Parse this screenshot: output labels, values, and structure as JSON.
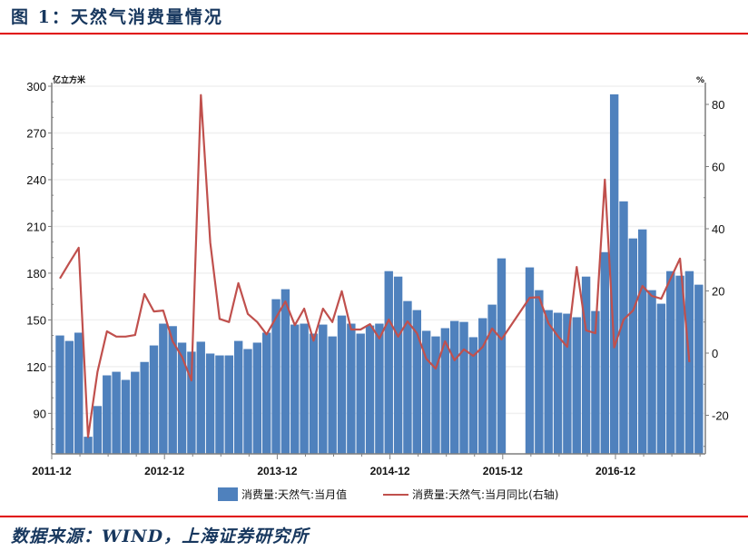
{
  "header": {
    "title": "图 1：天然气消费量情况"
  },
  "footer": {
    "source": "数据来源：WIND，上海证券研究所"
  },
  "colors": {
    "bar": "#4f81bd",
    "line": "#c0504d",
    "title": "#17375e",
    "rule": "#e00000"
  },
  "legend": {
    "bar_label": "消费量:天然气:当月值",
    "line_label": "消费量:天然气:当月同比(右轴)"
  },
  "chart_data": {
    "type": "bar+line",
    "title": "天然气消费量情况",
    "xlabel": "",
    "ylabel": "亿立方米",
    "y2label": "%",
    "ylim": [
      64,
      300
    ],
    "y2lim": [
      -32,
      86
    ],
    "yticks": [
      90,
      120,
      150,
      180,
      210,
      240,
      270,
      300
    ],
    "y2ticks": [
      -20,
      0,
      20,
      40,
      60,
      80
    ],
    "xtick_labels": [
      "2011-12",
      "2012-12",
      "2013-12",
      "2014-12",
      "2015-12",
      "2016-12"
    ],
    "grid": true,
    "legend_position": "bottom",
    "categories": [
      "2012-01",
      "2012-02",
      "2012-03",
      "2012-04",
      "2012-05",
      "2012-06",
      "2012-07",
      "2012-08",
      "2012-09",
      "2012-10",
      "2012-11",
      "2012-12",
      "2013-01",
      "2013-02",
      "2013-03",
      "2013-04",
      "2013-05",
      "2013-06",
      "2013-07",
      "2013-08",
      "2013-09",
      "2013-10",
      "2013-11",
      "2013-12",
      "2014-01",
      "2014-02",
      "2014-03",
      "2014-04",
      "2014-05",
      "2014-06",
      "2014-07",
      "2014-08",
      "2014-09",
      "2014-10",
      "2014-11",
      "2014-12",
      "2015-01",
      "2015-02",
      "2015-03",
      "2015-04",
      "2015-05",
      "2015-06",
      "2015-07",
      "2015-08",
      "2015-09",
      "2015-10",
      "2015-11",
      "2015-12",
      "2016-01",
      "2016-02",
      "2016-03",
      "2016-04",
      "2016-05",
      "2016-06",
      "2016-07",
      "2016-08",
      "2016-09",
      "2016-10",
      "2016-11",
      "2016-12",
      "2017-01",
      "2017-02",
      "2017-03",
      "2017-04",
      "2017-05",
      "2017-06",
      "2017-07",
      "2017-08",
      "2017-09",
      "2017-10"
    ],
    "series": [
      {
        "name": "消费量:天然气:当月值",
        "type": "bar",
        "axis": "left",
        "values": [
          140,
          136.5,
          141.8,
          75,
          94.7,
          114.4,
          116.7,
          111.5,
          116.7,
          123,
          133.6,
          147.6,
          146,
          135.4,
          129.6,
          136,
          128.4,
          127.2,
          127.2,
          136.5,
          131.3,
          135.4,
          141.8,
          163.3,
          169.7,
          147,
          147.6,
          141.2,
          147,
          139.4,
          152.8,
          147.6,
          141.2,
          146.4,
          147.6,
          181.3,
          177.8,
          162.1,
          156.3,
          143,
          139.4,
          144.7,
          149.3,
          148.7,
          138.9,
          151.1,
          159.8,
          189.5,
          null,
          null,
          183.7,
          169.1,
          156.3,
          154.6,
          154,
          151.7,
          177.8,
          155.7,
          193.5,
          294.8,
          226.1,
          202.3,
          208.1,
          169.1,
          160.4,
          181.3,
          178.4,
          181.3,
          172.6,
          null
        ]
      },
      {
        "name": "消费量:天然气:当月同比(右轴)",
        "type": "line",
        "axis": "right",
        "values": [
          24,
          29,
          33.9,
          -27,
          -6,
          7,
          5.3,
          5.3,
          5.8,
          19,
          13.4,
          13.7,
          3.8,
          -1.2,
          -8.8,
          83,
          35.6,
          11,
          10,
          22.5,
          12.6,
          10,
          6,
          11.4,
          16.6,
          9,
          14.3,
          4,
          14.3,
          10,
          19.9,
          7.6,
          7.6,
          9.3,
          4.7,
          10.8,
          5.3,
          10.2,
          6.4,
          -1.8,
          -5,
          3.8,
          -2.3,
          1.2,
          -0.9,
          2,
          7.9,
          4.4,
          null,
          null,
          17.8,
          18,
          9.6,
          5.5,
          2,
          27.7,
          7.3,
          6.4,
          55.8,
          1.8,
          10.8,
          13.7,
          21.6,
          18.4,
          17.5,
          24,
          30.4,
          -2.9,
          null,
          null
        ]
      }
    ]
  }
}
